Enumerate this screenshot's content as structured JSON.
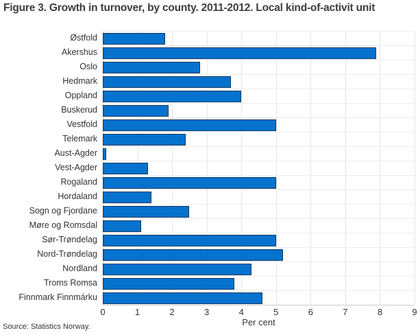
{
  "title": "Figure 3. Growth in turnover, by county. 2011-2012. Local kind-of-activit unit",
  "source": "Source: Statistics Norway.",
  "chart_data": {
    "type": "bar",
    "orientation": "horizontal",
    "title": "Figure 3. Growth in turnover, by county. 2011-2012. Local kind-of-activit unit",
    "categories": [
      "Østfold",
      "Akershus",
      "Oslo",
      "Hedmark",
      "Oppland",
      "Buskerud",
      "Vestfold",
      "Telemark",
      "Aust-Agder",
      "Vest-Agder",
      "Rogaland",
      "Hordaland",
      "Sogn og Fjordane",
      "Møre og Romsdal",
      "Sør-Trøndelag",
      "Nord-Trøndelag",
      "Nordland",
      "Troms Romsa",
      "Finnmark Finnmárku"
    ],
    "values": [
      1.8,
      7.9,
      2.8,
      3.7,
      4.0,
      1.9,
      5.0,
      2.4,
      0.1,
      1.3,
      5.0,
      1.4,
      2.5,
      1.1,
      5.0,
      5.2,
      4.3,
      3.8,
      4.6
    ],
    "xlabel": "Per cent",
    "ylabel": "",
    "xlim": [
      0,
      9
    ],
    "xticks": [
      0,
      1,
      2,
      3,
      4,
      5,
      6,
      7,
      8,
      9
    ],
    "grid": true,
    "legend": "none",
    "bar_color": "#0572ce",
    "bar_border_color": "#16395c"
  }
}
